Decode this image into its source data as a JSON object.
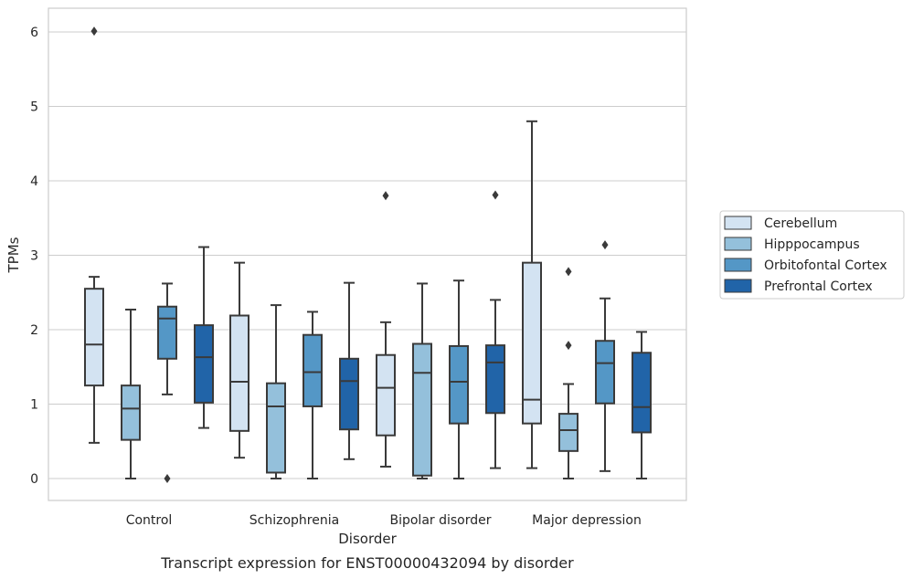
{
  "chart_data": {
    "type": "boxplot",
    "caption": "Transcript expression for ENST00000432094 by disorder",
    "xlabel": "Disorder",
    "ylabel": "TPMs",
    "ylim": [
      -0.28,
      6.32
    ],
    "yticks": [
      0,
      1,
      2,
      3,
      4,
      5,
      6
    ],
    "grid": true,
    "legend_position": "right",
    "categories": [
      "Control",
      "Schizophrenia",
      "Bipolar disorder",
      "Major depression"
    ],
    "series": [
      {
        "name": "Cerebellum",
        "color": "#d3e3f2",
        "boxes": [
          {
            "whislo": 0.48,
            "q1": 1.25,
            "med": 1.8,
            "q3": 2.55,
            "whishi": 2.71,
            "fliers": [
              6.01
            ]
          },
          {
            "whislo": 0.28,
            "q1": 0.64,
            "med": 1.3,
            "q3": 2.19,
            "whishi": 2.9,
            "fliers": []
          },
          {
            "whislo": 0.16,
            "q1": 0.58,
            "med": 1.22,
            "q3": 1.66,
            "whishi": 2.1,
            "fliers": [
              3.8
            ]
          },
          {
            "whislo": 0.14,
            "q1": 0.74,
            "med": 1.06,
            "q3": 2.9,
            "whishi": 4.8,
            "fliers": []
          }
        ]
      },
      {
        "name": "Hipppocampus",
        "color": "#94c0db",
        "boxes": [
          {
            "whislo": 0.0,
            "q1": 0.52,
            "med": 0.94,
            "q3": 1.25,
            "whishi": 2.27,
            "fliers": []
          },
          {
            "whislo": 0.0,
            "q1": 0.08,
            "med": 0.97,
            "q3": 1.28,
            "whishi": 2.33,
            "fliers": []
          },
          {
            "whislo": 0.0,
            "q1": 0.04,
            "med": 1.42,
            "q3": 1.81,
            "whishi": 2.62,
            "fliers": []
          },
          {
            "whislo": 0.0,
            "q1": 0.37,
            "med": 0.65,
            "q3": 0.87,
            "whishi": 1.27,
            "fliers": [
              1.79,
              2.78
            ]
          }
        ]
      },
      {
        "name": "Orbitofontal Cortex",
        "color": "#5497c6",
        "boxes": [
          {
            "whislo": 1.13,
            "q1": 1.61,
            "med": 2.15,
            "q3": 2.31,
            "whishi": 2.62,
            "fliers": [
              0.0
            ]
          },
          {
            "whislo": 0.0,
            "q1": 0.97,
            "med": 1.43,
            "q3": 1.93,
            "whishi": 2.24,
            "fliers": []
          },
          {
            "whislo": 0.0,
            "q1": 0.74,
            "med": 1.3,
            "q3": 1.78,
            "whishi": 2.66,
            "fliers": []
          },
          {
            "whislo": 0.1,
            "q1": 1.01,
            "med": 1.55,
            "q3": 1.85,
            "whishi": 2.42,
            "fliers": [
              3.14
            ]
          }
        ]
      },
      {
        "name": "Prefrontal Cortex",
        "color": "#2164a8",
        "boxes": [
          {
            "whislo": 0.68,
            "q1": 1.02,
            "med": 1.63,
            "q3": 2.06,
            "whishi": 3.11,
            "fliers": []
          },
          {
            "whislo": 0.26,
            "q1": 0.66,
            "med": 1.31,
            "q3": 1.61,
            "whishi": 2.63,
            "fliers": []
          },
          {
            "whislo": 0.14,
            "q1": 0.88,
            "med": 1.56,
            "q3": 1.79,
            "whishi": 2.4,
            "fliers": [
              3.81
            ]
          },
          {
            "whislo": 0.0,
            "q1": 0.62,
            "med": 0.96,
            "q3": 1.69,
            "whishi": 1.97,
            "fliers": []
          }
        ]
      }
    ]
  }
}
